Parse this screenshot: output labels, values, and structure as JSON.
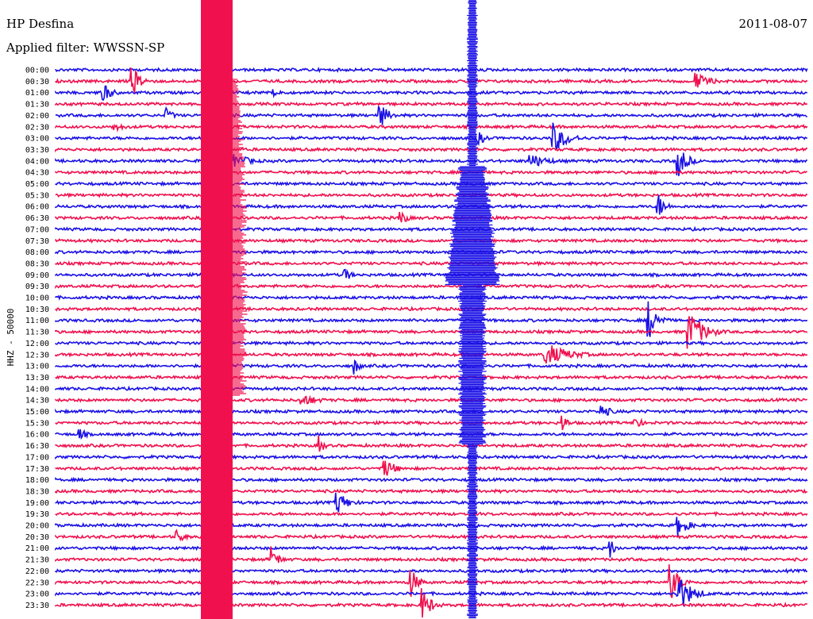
{
  "station": "HP Desfina",
  "date": "2011-08-07",
  "filter_label": "Applied filter: WWSSN-SP",
  "channel_label": "HHZ - 50000",
  "chart_data": {
    "type": "line",
    "title": "HP Desfina",
    "subtitle": "Applied filter: WWSSN-SP",
    "ylabel": "HHZ - 50000",
    "grid": false,
    "legend": "none",
    "colors": {
      "even_trace": "#1a10e6",
      "odd_trace": "#f0104e"
    },
    "trace_labels": [
      "00:00",
      "00:30",
      "01:00",
      "01:30",
      "02:00",
      "02:30",
      "03:00",
      "03:30",
      "04:00",
      "04:30",
      "05:00",
      "05:30",
      "06:00",
      "06:30",
      "07:00",
      "07:30",
      "08:00",
      "08:30",
      "09:00",
      "09:30",
      "10:00",
      "10:30",
      "11:00",
      "11:30",
      "12:00",
      "12:30",
      "13:00",
      "13:30",
      "14:00",
      "14:30",
      "15:00",
      "15:30",
      "16:00",
      "16:30",
      "17:00",
      "17:30",
      "18:00",
      "18:30",
      "19:00",
      "19:30",
      "20:00",
      "20:30",
      "21:00",
      "21:30",
      "22:00",
      "22:30",
      "23:00",
      "23:30"
    ],
    "x_minutes": [
      0,
      30
    ],
    "events": [
      {
        "trace": "00:30",
        "minute": 3.0,
        "amplitude": 22,
        "duration_min": 1.0
      },
      {
        "trace": "00:30",
        "minute": 25.5,
        "amplitude": 12,
        "duration_min": 1.5
      },
      {
        "trace": "01:00",
        "minute": 1.8,
        "amplitude": 16,
        "duration_min": 1.0
      },
      {
        "trace": "01:00",
        "minute": 8.7,
        "amplitude": 8,
        "duration_min": 0.8
      },
      {
        "trace": "02:00",
        "minute": 4.4,
        "amplitude": 10,
        "duration_min": 0.8
      },
      {
        "trace": "02:00",
        "minute": 12.9,
        "amplitude": 18,
        "duration_min": 1.0
      },
      {
        "trace": "02:30",
        "minute": 2.3,
        "amplitude": 6,
        "duration_min": 1.5
      },
      {
        "trace": "03:00",
        "minute": 16.8,
        "amplitude": 10,
        "duration_min": 1.0
      },
      {
        "trace": "03:00",
        "minute": 19.8,
        "amplitude": 22,
        "duration_min": 1.5
      },
      {
        "trace": "04:00",
        "minute": 6.8,
        "amplitude": 14,
        "duration_min": 2.0
      },
      {
        "trace": "04:00",
        "minute": 18.9,
        "amplitude": 10,
        "duration_min": 2.0
      },
      {
        "trace": "04:00",
        "minute": 24.8,
        "amplitude": 22,
        "duration_min": 1.0
      },
      {
        "trace": "06:00",
        "minute": 24.0,
        "amplitude": 18,
        "duration_min": 0.8
      },
      {
        "trace": "06:30",
        "minute": 13.7,
        "amplitude": 12,
        "duration_min": 0.8
      },
      {
        "trace": "09:00",
        "minute": 11.5,
        "amplitude": 10,
        "duration_min": 0.8
      },
      {
        "trace": "11:00",
        "minute": 23.6,
        "amplitude": 28,
        "duration_min": 1.0
      },
      {
        "trace": "11:30",
        "minute": 25.2,
        "amplitude": 30,
        "duration_min": 1.6
      },
      {
        "trace": "12:30",
        "minute": 19.5,
        "amplitude": 16,
        "duration_min": 2.5
      },
      {
        "trace": "13:00",
        "minute": 11.9,
        "amplitude": 12,
        "duration_min": 0.6
      },
      {
        "trace": "14:30",
        "minute": 9.8,
        "amplitude": 8,
        "duration_min": 2.0
      },
      {
        "trace": "15:00",
        "minute": 21.7,
        "amplitude": 10,
        "duration_min": 1.2
      },
      {
        "trace": "15:30",
        "minute": 20.2,
        "amplitude": 12,
        "duration_min": 0.6
      },
      {
        "trace": "15:30",
        "minute": 23.1,
        "amplitude": 12,
        "duration_min": 0.6
      },
      {
        "trace": "16:00",
        "minute": 0.9,
        "amplitude": 10,
        "duration_min": 0.8
      },
      {
        "trace": "16:30",
        "minute": 10.5,
        "amplitude": 12,
        "duration_min": 0.6
      },
      {
        "trace": "17:30",
        "minute": 13.1,
        "amplitude": 14,
        "duration_min": 1.2
      },
      {
        "trace": "19:00",
        "minute": 11.2,
        "amplitude": 16,
        "duration_min": 1.2
      },
      {
        "trace": "20:00",
        "minute": 24.8,
        "amplitude": 16,
        "duration_min": 1.0
      },
      {
        "trace": "20:30",
        "minute": 4.8,
        "amplitude": 10,
        "duration_min": 1.0
      },
      {
        "trace": "21:00",
        "minute": 22.1,
        "amplitude": 14,
        "duration_min": 0.6
      },
      {
        "trace": "21:30",
        "minute": 8.6,
        "amplitude": 16,
        "duration_min": 0.8
      },
      {
        "trace": "22:30",
        "minute": 14.1,
        "amplitude": 24,
        "duration_min": 0.8
      },
      {
        "trace": "22:30",
        "minute": 24.5,
        "amplitude": 26,
        "duration_min": 1.0
      },
      {
        "trace": "23:00",
        "minute": 24.8,
        "amplitude": 26,
        "duration_min": 1.5
      },
      {
        "trace": "23:30",
        "minute": 14.6,
        "amplitude": 22,
        "duration_min": 1.0
      }
    ]
  }
}
